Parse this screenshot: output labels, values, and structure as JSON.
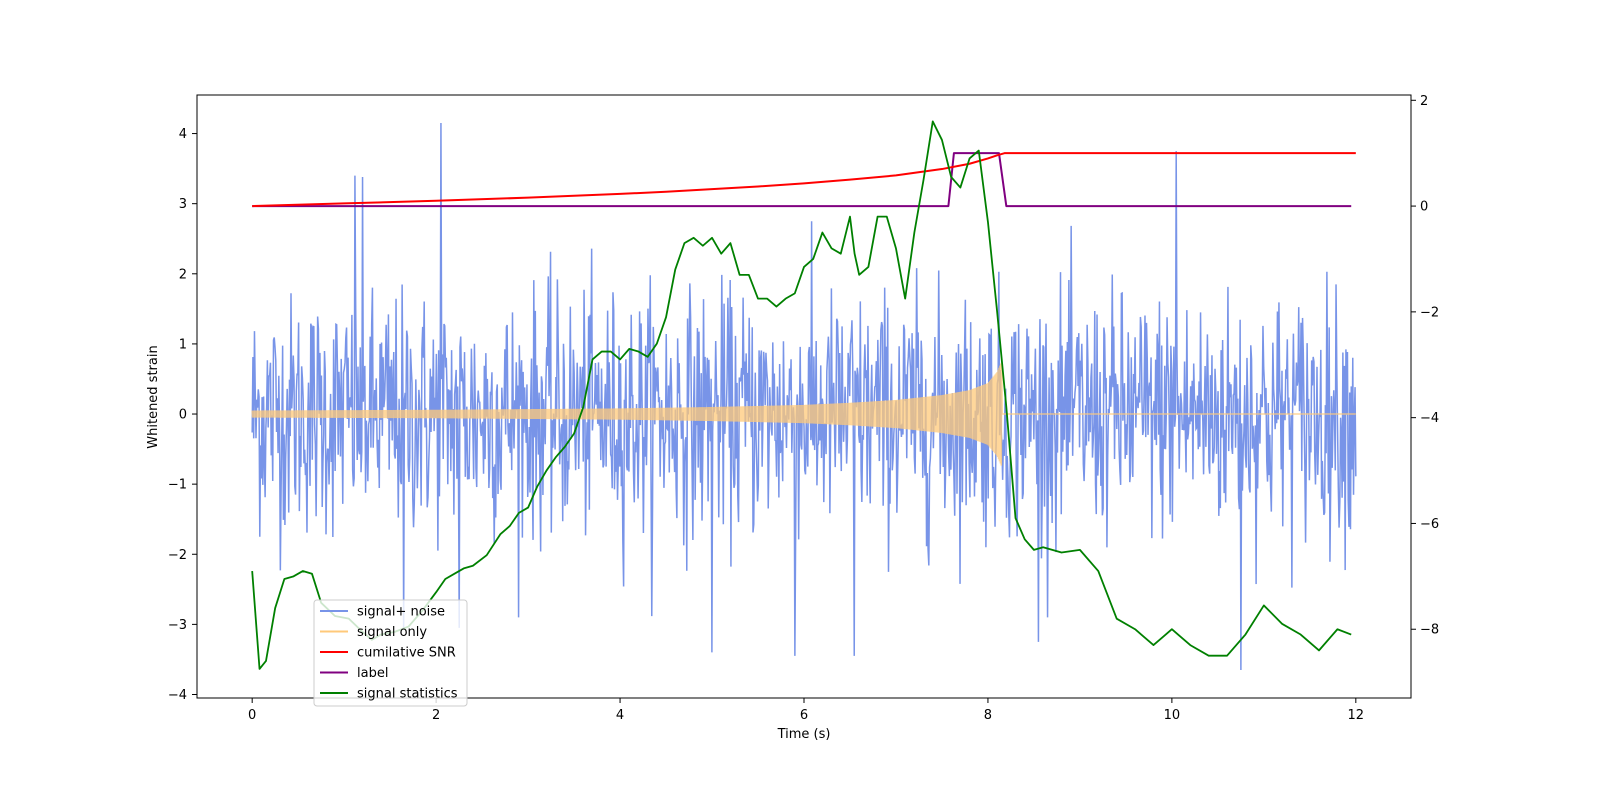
{
  "chart_data": {
    "type": "line",
    "title": "",
    "xlabel": "Time (s)",
    "ylabel": "Whitened strain",
    "xlim": [
      -0.6,
      12.6
    ],
    "ylim": [
      -4.05,
      4.55
    ],
    "y2lim": [
      -9.3,
      2.1
    ],
    "xticks": [
      0,
      2,
      4,
      6,
      8,
      10,
      12
    ],
    "xtick_labels": [
      "0",
      "2",
      "4",
      "6",
      "8",
      "10",
      "12"
    ],
    "yticks": [
      -4,
      -3,
      -2,
      -1,
      0,
      1,
      2,
      3,
      4
    ],
    "ytick_labels": [
      "−4",
      "−3",
      "−2",
      "−1",
      "0",
      "1",
      "2",
      "3",
      "4"
    ],
    "y2ticks": [
      -8,
      -6,
      -4,
      -2,
      0,
      2
    ],
    "y2tick_labels": [
      "−8",
      "−6",
      "−4",
      "−2",
      "0",
      "2"
    ],
    "legend": {
      "placement": "lower-left",
      "entries": [
        {
          "label": "signal+ noise",
          "color": "#7894e8"
        },
        {
          "label": "signal only",
          "color": "#ffc97a"
        },
        {
          "label": "cumilative SNR",
          "color": "#ff0000"
        },
        {
          "label": "label",
          "color": "#800080"
        },
        {
          "label": "signal statistics",
          "color": "#008000"
        }
      ]
    },
    "series": [
      {
        "name": "signal+ noise",
        "axis": "left",
        "color": "#7894e8",
        "x_range": [
          0,
          12
        ],
        "sigma": 0.85,
        "peaks": [
          {
            "x": 2.05,
            "y": 4.15
          },
          {
            "x": 1.12,
            "y": 3.4
          },
          {
            "x": 1.2,
            "y": 3.38
          },
          {
            "x": 10.05,
            "y": 3.75
          },
          {
            "x": 6.55,
            "y": -3.45
          },
          {
            "x": 10.75,
            "y": -3.65
          },
          {
            "x": 5.0,
            "y": -3.4
          },
          {
            "x": 5.9,
            "y": -3.45
          },
          {
            "x": 1.65,
            "y": -3.05
          },
          {
            "x": 2.25,
            "y": -3.05
          },
          {
            "x": 8.55,
            "y": -3.25
          }
        ]
      },
      {
        "name": "signal only",
        "axis": "left",
        "color": "#ffc97a",
        "x_range": [
          0,
          12
        ],
        "chirp_end": 8.15,
        "envelope": {
          "t": [
            0,
            2,
            4,
            5,
            6,
            6.5,
            7,
            7.5,
            7.8,
            8.0,
            8.1,
            8.15
          ],
          "amp": [
            0.05,
            0.06,
            0.08,
            0.1,
            0.13,
            0.16,
            0.2,
            0.27,
            0.34,
            0.44,
            0.6,
            0.75
          ]
        }
      },
      {
        "name": "cumilative SNR",
        "axis": "right",
        "color": "#ff0000",
        "x": [
          0,
          1,
          2,
          3,
          4,
          4.5,
          5,
          5.5,
          6,
          6.5,
          7,
          7.5,
          7.8,
          8.0,
          8.1,
          8.18,
          12
        ],
        "y": [
          0.0,
          0.05,
          0.1,
          0.16,
          0.23,
          0.27,
          0.32,
          0.37,
          0.43,
          0.5,
          0.58,
          0.7,
          0.8,
          0.9,
          0.96,
          1.0,
          1.0
        ]
      },
      {
        "name": "label",
        "axis": "right",
        "color": "#800080",
        "x": [
          0,
          7.57,
          7.63,
          8.12,
          8.2,
          11.95
        ],
        "y": [
          0,
          0,
          1,
          1,
          0,
          0
        ]
      },
      {
        "name": "signal statistics",
        "axis": "right",
        "color": "#008000",
        "x": [
          0.0,
          0.08,
          0.15,
          0.25,
          0.35,
          0.45,
          0.55,
          0.65,
          0.75,
          0.9,
          1.05,
          1.2,
          1.3,
          1.4,
          1.55,
          1.7,
          1.85,
          2.0,
          2.1,
          2.2,
          2.3,
          2.4,
          2.55,
          2.7,
          2.8,
          2.9,
          3.0,
          3.1,
          3.2,
          3.3,
          3.4,
          3.5,
          3.6,
          3.7,
          3.8,
          3.9,
          4.0,
          4.1,
          4.2,
          4.3,
          4.4,
          4.5,
          4.6,
          4.7,
          4.8,
          4.9,
          5.0,
          5.1,
          5.2,
          5.3,
          5.4,
          5.5,
          5.6,
          5.7,
          5.8,
          5.9,
          6.0,
          6.1,
          6.2,
          6.3,
          6.4,
          6.5,
          6.55,
          6.6,
          6.7,
          6.8,
          6.9,
          7.0,
          7.1,
          7.2,
          7.3,
          7.4,
          7.5,
          7.6,
          7.7,
          7.8,
          7.9,
          8.0,
          8.1,
          8.2,
          8.3,
          8.4,
          8.5,
          8.6,
          8.8,
          9.0,
          9.2,
          9.4,
          9.6,
          9.8,
          10.0,
          10.2,
          10.4,
          10.6,
          10.8,
          11.0,
          11.2,
          11.4,
          11.6,
          11.8,
          11.95
        ],
        "y": [
          -6.9,
          -8.75,
          -8.6,
          -7.6,
          -7.05,
          -7.0,
          -6.9,
          -6.95,
          -7.5,
          -7.75,
          -7.8,
          -8.05,
          -8.2,
          -8.1,
          -8.05,
          -7.95,
          -7.65,
          -7.3,
          -7.05,
          -6.95,
          -6.85,
          -6.8,
          -6.6,
          -6.2,
          -6.05,
          -5.8,
          -5.7,
          -5.3,
          -5.0,
          -4.75,
          -4.55,
          -4.3,
          -3.8,
          -2.9,
          -2.75,
          -2.75,
          -2.9,
          -2.7,
          -2.75,
          -2.85,
          -2.6,
          -2.1,
          -1.2,
          -0.7,
          -0.6,
          -0.75,
          -0.6,
          -0.9,
          -0.7,
          -1.3,
          -1.3,
          -1.75,
          -1.75,
          -1.9,
          -1.75,
          -1.65,
          -1.15,
          -1.0,
          -0.5,
          -0.8,
          -0.9,
          -0.2,
          -0.9,
          -1.3,
          -1.15,
          -0.2,
          -0.2,
          -0.8,
          -1.75,
          -0.5,
          0.5,
          1.6,
          1.25,
          0.55,
          0.35,
          0.9,
          1.05,
          -0.3,
          -2.0,
          -3.8,
          -5.9,
          -6.3,
          -6.5,
          -6.45,
          -6.55,
          -6.5,
          -6.9,
          -7.8,
          -8.0,
          -8.3,
          -8.0,
          -8.3,
          -8.5,
          -8.5,
          -8.1,
          -7.55,
          -7.9,
          -8.1,
          -8.4,
          -8.0,
          -8.1
        ]
      }
    ]
  }
}
